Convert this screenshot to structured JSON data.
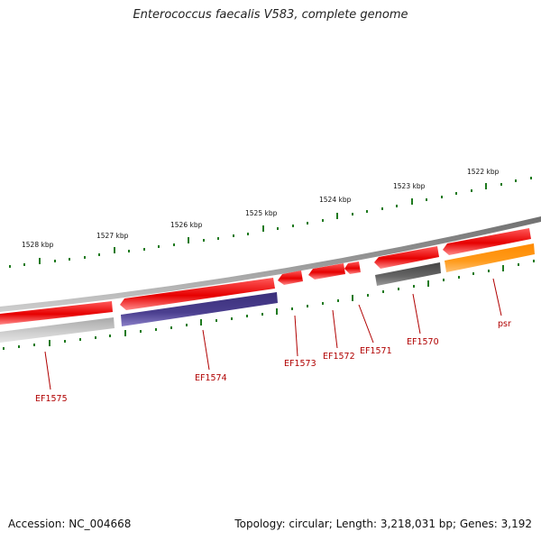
{
  "title": "Enterococcus faecalis V583, complete genome",
  "footer": {
    "accession": "Accession: NC_004668",
    "summary": "Topology: circular; Length: 3,218,031 bp; Genes: 3,192"
  },
  "colors": {
    "backbone": "#888888",
    "tick": "#1f7a1f",
    "label": "#b00000",
    "forward_gene": "#e61010",
    "reverse_gray": "#bfbfbf",
    "reverse_dark": "#5c5c5c",
    "reverse_purple": "#4b3f8f",
    "reverse_orange": "#ff9a1a"
  },
  "scale_labels": [
    "1528 kbp",
    "1527 kbp",
    "1526 kbp",
    "1525 kbp",
    "1524 kbp",
    "1523 kbp",
    "1522 kbp"
  ],
  "gene_labels": [
    "EF1575",
    "EF1574",
    "EF1573",
    "EF1572",
    "EF1571",
    "EF1570",
    "psr"
  ],
  "features": [
    {
      "name": "forward-gene-1",
      "strand": "forward",
      "color": "forward_gene"
    },
    {
      "name": "forward-gene-2",
      "strand": "forward",
      "color": "forward_gene"
    },
    {
      "name": "forward-gene-3",
      "strand": "forward",
      "color": "forward_gene"
    },
    {
      "name": "forward-gene-4",
      "strand": "forward",
      "color": "forward_gene"
    },
    {
      "name": "forward-gene-5",
      "strand": "forward",
      "color": "forward_gene"
    },
    {
      "name": "forward-gene-6",
      "strand": "forward",
      "color": "forward_gene"
    },
    {
      "name": "forward-gene-7",
      "strand": "forward",
      "color": "forward_gene"
    },
    {
      "name": "reverse-gene-1",
      "strand": "reverse",
      "color": "reverse_gray"
    },
    {
      "name": "reverse-gene-2",
      "strand": "reverse",
      "color": "reverse_purple"
    },
    {
      "name": "reverse-gene-3",
      "strand": "reverse",
      "color": "reverse_dark"
    },
    {
      "name": "reverse-gene-4",
      "strand": "reverse",
      "color": "reverse_orange"
    }
  ]
}
